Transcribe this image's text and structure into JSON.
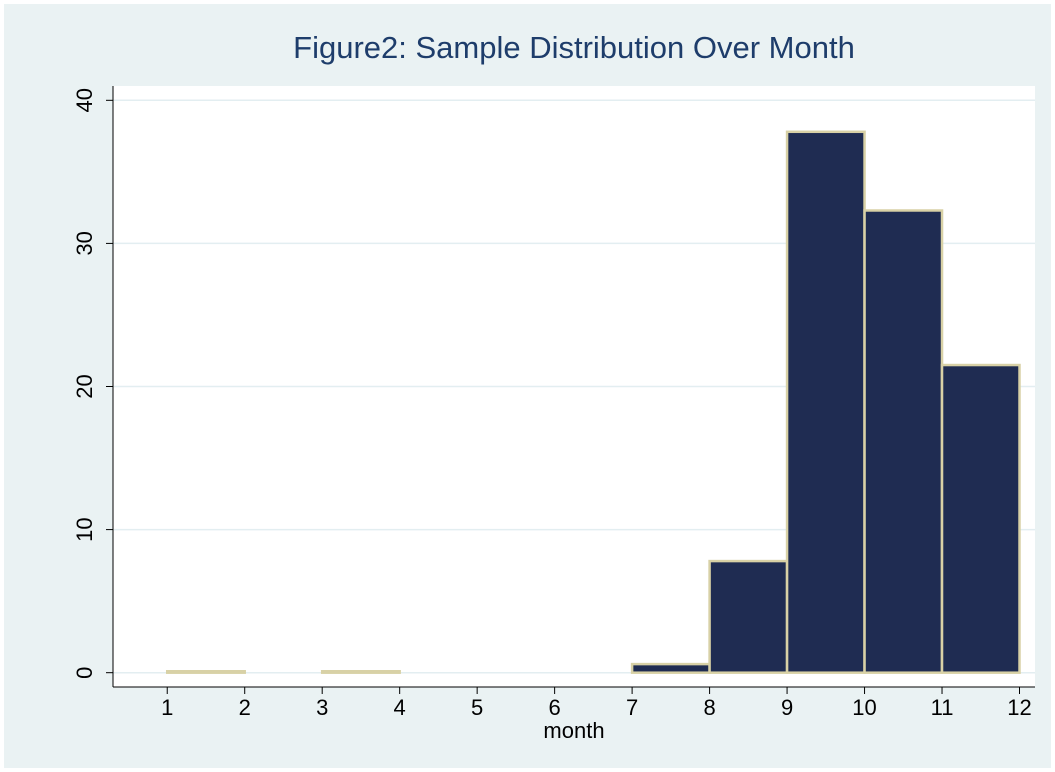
{
  "chart_data": {
    "type": "histogram",
    "title": "Figure2: Sample Distribution Over Month",
    "x_label": "month",
    "bins": [
      1,
      2,
      3,
      4,
      5,
      6,
      7,
      8,
      9,
      10,
      11,
      12
    ],
    "values": [
      0.1,
      0,
      0.1,
      0,
      0,
      0,
      0.6,
      7.8,
      37.8,
      32.3,
      21.5
    ],
    "color": "#1f2c52",
    "edge_color": "#d8d1a6",
    "xlim": [
      0.3,
      12.2
    ],
    "ylim": [
      -1,
      41
    ],
    "xticks": [
      1,
      2,
      3,
      4,
      5,
      6,
      7,
      8,
      9,
      10,
      11,
      12
    ],
    "yticks": [
      0,
      10,
      20,
      30,
      40
    ],
    "grid": true
  }
}
